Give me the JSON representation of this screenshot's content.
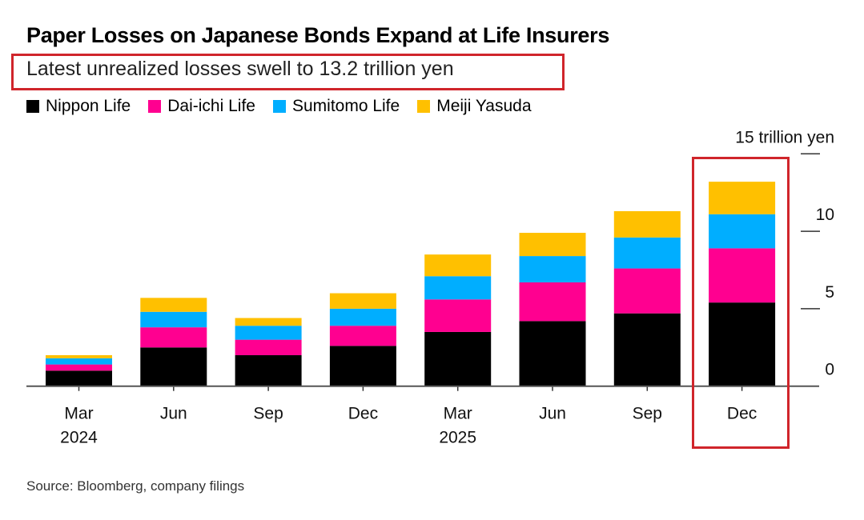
{
  "title": "Paper Losses on Japanese Bonds Expand at Life Insurers",
  "subtitle": "Latest unrealized losses swell to 13.2 trillion yen",
  "source": "Source: Bloomberg, company filings",
  "highlight_color": "#d0252b",
  "chart_data": {
    "type": "bar",
    "stacked": true,
    "categories": [
      "Mar 2024",
      "Jun",
      "Sep",
      "Dec",
      "Mar 2025",
      "Jun",
      "Sep",
      "Dec"
    ],
    "category_labels": [
      [
        "Mar",
        "2024"
      ],
      [
        "Jun"
      ],
      [
        "Sep"
      ],
      [
        "Dec"
      ],
      [
        "Mar",
        "2025"
      ],
      [
        "Jun"
      ],
      [
        "Sep"
      ],
      [
        "Dec"
      ]
    ],
    "series": [
      {
        "name": "Nippon Life",
        "color": "#000000",
        "values": [
          1.0,
          2.5,
          2.0,
          2.6,
          3.5,
          4.2,
          4.7,
          5.4
        ]
      },
      {
        "name": "Dai-ichi Life",
        "color": "#ff0090",
        "values": [
          0.4,
          1.3,
          1.0,
          1.3,
          2.1,
          2.5,
          2.9,
          3.5
        ]
      },
      {
        "name": "Sumitomo Life",
        "color": "#00aeff",
        "values": [
          0.4,
          1.0,
          0.9,
          1.1,
          1.5,
          1.7,
          2.0,
          2.2
        ]
      },
      {
        "name": "Meiji Yasuda",
        "color": "#ffc000",
        "values": [
          0.2,
          0.9,
          0.5,
          1.0,
          1.4,
          1.5,
          1.7,
          2.1
        ]
      }
    ],
    "ylim": [
      0,
      15
    ],
    "yticks": [
      0,
      5,
      10,
      15
    ],
    "ytick_labels": [
      "0",
      "5",
      "10",
      "15 trillion yen"
    ],
    "yaxis_position": "right",
    "grid": false,
    "legend_position": "top-left",
    "highlighted_category": "Dec 2025"
  }
}
